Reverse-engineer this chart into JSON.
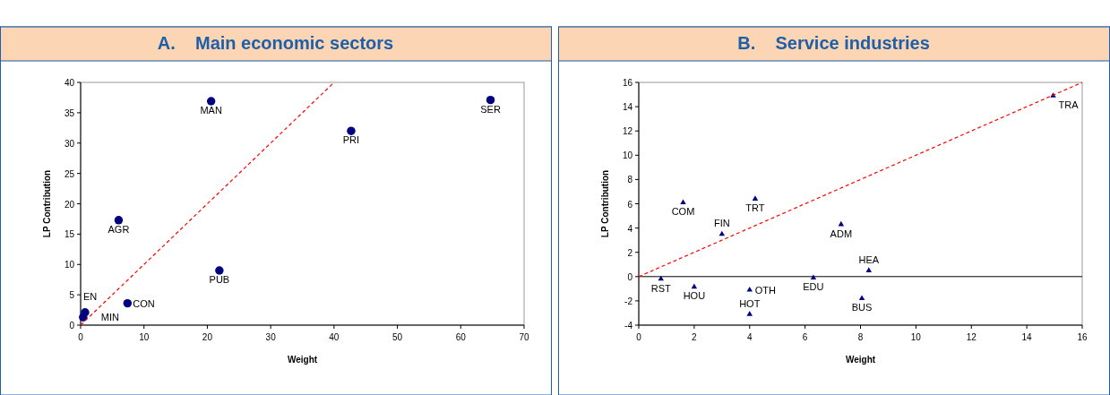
{
  "chart_data": [
    {
      "type": "scatter",
      "title": "A.    Main economic sectors",
      "xlabel": "Weight",
      "ylabel": "LP Contribution",
      "xlim": [
        0,
        70
      ],
      "xticks": [
        0,
        10,
        20,
        30,
        40,
        50,
        60,
        70
      ],
      "ylim": [
        0,
        40
      ],
      "yticks": [
        0,
        5,
        10,
        15,
        20,
        25,
        30,
        35,
        40
      ],
      "grid": false,
      "series": [
        {
          "color": "#000080",
          "marker": "circle",
          "x": [
            20.6,
            64.7,
            42.7,
            6.0,
            21.9,
            7.4,
            0.7,
            0.4
          ],
          "values": [
            36.9,
            37.1,
            32.0,
            17.3,
            9.0,
            3.6,
            2.1,
            1.3
          ]
        },
        {
          "type": "line",
          "color": "#ff0000",
          "marker": "none",
          "line_style": "dashed",
          "x": [
            0,
            40
          ],
          "values": [
            0,
            40
          ]
        }
      ],
      "annotations": [
        {
          "text": "MAN",
          "x": 20.6,
          "y": 36.9
        },
        {
          "text": "SER",
          "x": 64.7,
          "y": 37.1
        },
        {
          "text": "PRI",
          "x": 42.7,
          "y": 32.0
        },
        {
          "text": "AGR",
          "x": 6.0,
          "y": 17.3
        },
        {
          "text": "PUB",
          "x": 21.9,
          "y": 9.0
        },
        {
          "text": "CON",
          "x": 7.4,
          "y": 3.6
        },
        {
          "text": "EN",
          "x": 0.7,
          "y": 2.1
        },
        {
          "text": "MIN",
          "x": 0.4,
          "y": 1.3
        }
      ]
    },
    {
      "type": "scatter",
      "title": "B.    Service industries",
      "xlabel": "Weight",
      "ylabel": "LP Contribution",
      "xlim": [
        0,
        16
      ],
      "xticks": [
        0,
        2,
        4,
        6,
        8,
        10,
        12,
        14,
        16
      ],
      "ylim": [
        -4,
        16
      ],
      "yticks": [
        -4,
        -2,
        0,
        2,
        4,
        6,
        8,
        10,
        12,
        14,
        16
      ],
      "grid": false,
      "ref_lines": [
        {
          "axis": "y",
          "value": 0,
          "color": "#000000"
        }
      ],
      "series": [
        {
          "color": "#000080",
          "marker": "triangle",
          "x": [
            14.95,
            1.6,
            4.2,
            3.0,
            7.3,
            8.3,
            6.3,
            0.8,
            2.0,
            4.0,
            4.0,
            8.05
          ],
          "values": [
            14.9,
            6.1,
            6.4,
            3.5,
            4.3,
            0.5,
            -0.1,
            -0.2,
            -0.85,
            -1.1,
            -3.1,
            -1.8
          ]
        },
        {
          "type": "line",
          "color": "#ff0000",
          "marker": "none",
          "line_style": "dashed",
          "x": [
            0,
            16
          ],
          "values": [
            0,
            16
          ]
        }
      ],
      "annotations": [
        {
          "text": "TRA",
          "x": 14.95,
          "y": 14.9
        },
        {
          "text": "COM",
          "x": 1.6,
          "y": 6.1
        },
        {
          "text": "TRT",
          "x": 4.2,
          "y": 6.4
        },
        {
          "text": "FIN",
          "x": 3.0,
          "y": 3.5
        },
        {
          "text": "ADM",
          "x": 7.3,
          "y": 4.3
        },
        {
          "text": "HEA",
          "x": 8.3,
          "y": 0.5
        },
        {
          "text": "EDU",
          "x": 6.3,
          "y": -0.1
        },
        {
          "text": "RST",
          "x": 0.8,
          "y": -0.2
        },
        {
          "text": "HOU",
          "x": 2.0,
          "y": -0.85
        },
        {
          "text": "OTH",
          "x": 4.0,
          "y": -1.1
        },
        {
          "text": "HOT",
          "x": 4.0,
          "y": -3.1
        },
        {
          "text": "BUS",
          "x": 8.05,
          "y": -1.8
        }
      ]
    }
  ]
}
